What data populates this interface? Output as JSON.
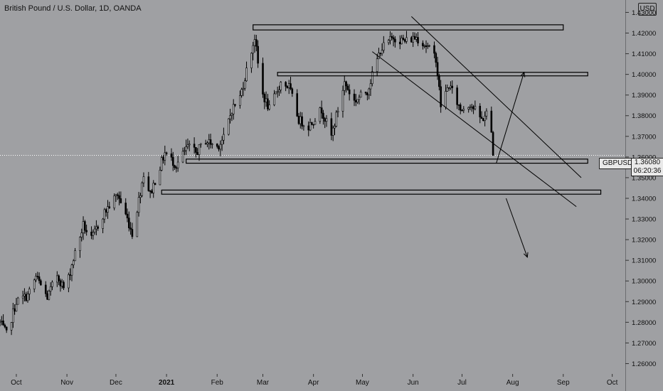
{
  "header": {
    "title": "British Pound / U.S. Dollar, 1D, OANDA",
    "currency_badge": "USD"
  },
  "price_label": {
    "ticker": "GBPUSD",
    "price": "1.36080",
    "countdown": "06:20:36"
  },
  "colors": {
    "background": "#9fa0a3",
    "candles": "#000000",
    "drawings": "#000000",
    "text": "#111111"
  },
  "chart_data": {
    "type": "candlestick",
    "y_axis": {
      "ticks": [
        "1.43000",
        "1.42000",
        "1.41000",
        "1.40000",
        "1.39000",
        "1.38000",
        "1.37000",
        "1.36000",
        "1.35000",
        "1.34000",
        "1.33000",
        "1.32000",
        "1.31000",
        "1.30000",
        "1.29000",
        "1.28000",
        "1.27000",
        "1.26000"
      ],
      "range": [
        1.255,
        1.436
      ]
    },
    "x_axis": {
      "labels": [
        "Oct",
        "Nov",
        "Dec",
        "2021",
        "Feb",
        "Mar",
        "Apr",
        "May",
        "Jun",
        "Jul",
        "Aug",
        "Sep",
        "Oct"
      ],
      "range": [
        "2020-09-21",
        "2021-10-09"
      ]
    },
    "last_price": 1.3608,
    "path": [
      [
        "2020-09-21",
        1.28
      ],
      [
        "2020-09-25",
        1.274
      ],
      [
        "2020-10-01",
        1.29
      ],
      [
        "2020-10-08",
        1.293
      ],
      [
        "2020-10-13",
        1.302
      ],
      [
        "2020-10-20",
        1.292
      ],
      [
        "2020-10-26",
        1.303
      ],
      [
        "2020-10-31",
        1.295
      ],
      [
        "2020-11-04",
        1.308
      ],
      [
        "2020-11-11",
        1.327
      ],
      [
        "2020-11-16",
        1.32
      ],
      [
        "2020-11-23",
        1.332
      ],
      [
        "2020-12-02",
        1.342
      ],
      [
        "2020-12-08",
        1.33
      ],
      [
        "2020-12-11",
        1.323
      ],
      [
        "2020-12-14",
        1.335
      ],
      [
        "2020-12-18",
        1.352
      ],
      [
        "2020-12-22",
        1.342
      ],
      [
        "2020-12-31",
        1.362
      ],
      [
        "2021-01-07",
        1.356
      ],
      [
        "2021-01-14",
        1.365
      ],
      [
        "2021-01-19",
        1.362
      ],
      [
        "2021-01-25",
        1.368
      ],
      [
        "2021-02-01",
        1.365
      ],
      [
        "2021-02-05",
        1.369
      ],
      [
        "2021-02-10",
        1.383
      ],
      [
        "2021-02-15",
        1.389
      ],
      [
        "2021-02-24",
        1.418
      ],
      [
        "2021-02-28",
        1.392
      ],
      [
        "2021-03-05",
        1.383
      ],
      [
        "2021-03-12",
        1.396
      ],
      [
        "2021-03-17",
        1.394
      ],
      [
        "2021-03-23",
        1.378
      ],
      [
        "2021-03-29",
        1.375
      ],
      [
        "2021-04-06",
        1.383
      ],
      [
        "2021-04-12",
        1.37
      ],
      [
        "2021-04-20",
        1.396
      ],
      [
        "2021-04-26",
        1.387
      ],
      [
        "2021-05-04",
        1.392
      ],
      [
        "2021-05-12",
        1.412
      ],
      [
        "2021-05-20",
        1.418
      ],
      [
        "2021-05-27",
        1.416
      ],
      [
        "2021-06-03",
        1.418
      ],
      [
        "2021-06-09",
        1.414
      ],
      [
        "2021-06-15",
        1.408
      ],
      [
        "2021-06-18",
        1.385
      ],
      [
        "2021-06-23",
        1.395
      ],
      [
        "2021-06-30",
        1.383
      ],
      [
        "2021-07-06",
        1.386
      ],
      [
        "2021-07-13",
        1.378
      ],
      [
        "2021-07-16",
        1.381
      ],
      [
        "2021-07-19",
        1.372
      ],
      [
        "2021-07-20",
        1.3608
      ]
    ],
    "drawings": {
      "zones": [
        {
          "name": "top-resistance",
          "start": "2021-02-23",
          "end": "2021-09-01",
          "low": 1.4215,
          "high": 1.424
        },
        {
          "name": "upper-resistance",
          "start": "2021-03-10",
          "end": "2021-09-16",
          "low": 1.3995,
          "high": 1.401
        },
        {
          "name": "support-zone",
          "start": "2021-01-13",
          "end": "2021-09-16",
          "low": 1.357,
          "high": 1.359
        },
        {
          "name": "lower-support",
          "start": "2020-12-29",
          "end": "2021-09-24",
          "low": 1.342,
          "high": 1.344
        }
      ],
      "trendlines": [
        {
          "name": "channel-upper",
          "start": [
            "2021-05-31",
            1.428
          ],
          "end": [
            "2021-09-12",
            1.35
          ]
        },
        {
          "name": "channel-lower",
          "start": [
            "2021-05-07",
            1.411
          ],
          "end": [
            "2021-09-09",
            1.336
          ]
        }
      ],
      "arrows": [
        {
          "name": "bullish-arrow",
          "start": [
            "2021-07-22",
            1.357
          ],
          "end": [
            "2021-08-08",
            1.401
          ]
        },
        {
          "name": "bearish-arrow",
          "start": [
            "2021-07-28",
            1.34
          ],
          "end": [
            "2021-08-10",
            1.3115
          ]
        }
      ]
    }
  }
}
